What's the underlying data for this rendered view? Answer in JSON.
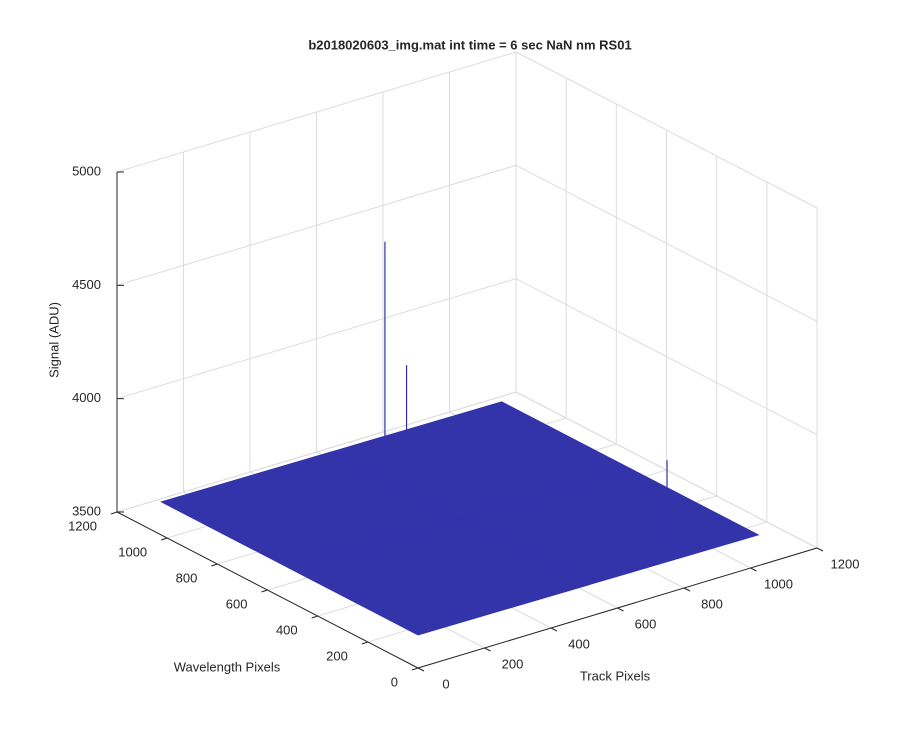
{
  "chart_data": {
    "type": "surface",
    "title": "b2018020603_img.mat int time = 6 sec  NaN nm RS01",
    "xlabel": "Track Pixels",
    "ylabel": "Wavelength Pixels",
    "zlabel": "Signal (ADU)",
    "x": [
      1,
      512,
      1024
    ],
    "y": [
      1,
      512,
      1024
    ],
    "z": [
      [
        3645,
        3640,
        3635
      ],
      [
        3645,
        3640,
        3635
      ],
      [
        3645,
        3640,
        3635
      ]
    ],
    "spikes": {
      "x": [
        670,
        720,
        804
      ],
      "y": [
        1020,
        1000,
        73
      ],
      "z": [
        4500,
        3945,
        4020
      ]
    },
    "color": "#3333aa",
    "xlim": [
      0,
      1200
    ],
    "ylim": [
      0,
      1200
    ],
    "zlim": [
      3500,
      5000
    ],
    "xticks": [
      0,
      200,
      400,
      600,
      800,
      1000,
      1200
    ],
    "yticks": [
      0,
      200,
      400,
      600,
      800,
      1000,
      1200
    ],
    "zticks": [
      3500,
      4000,
      4500,
      5000
    ],
    "grid": true
  }
}
